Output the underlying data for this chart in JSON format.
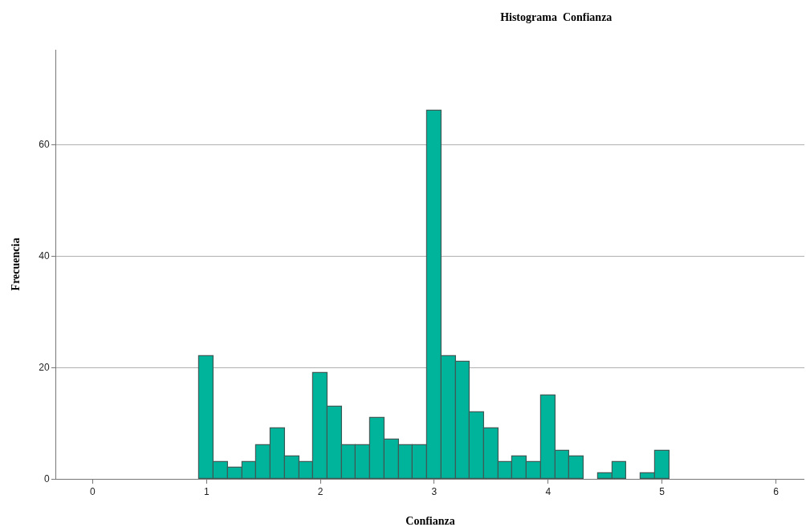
{
  "chart_data": {
    "type": "histogram",
    "title": "Histograma  Confianza",
    "xlabel": "Confianza",
    "ylabel": "Frecuencia",
    "bins": [
      0.9375,
      1.0625,
      1.1875,
      1.3125,
      1.4375,
      1.5625,
      1.6875,
      1.8125,
      1.9375,
      2.0625,
      2.1875,
      2.3125,
      2.4375,
      2.5625,
      2.6875,
      2.8125,
      2.9375,
      3.0625,
      3.1875,
      3.3125,
      3.4375,
      3.5625,
      3.6875,
      3.8125,
      3.9375,
      4.0625,
      4.1875,
      4.3125,
      4.4375,
      4.5625,
      4.6875,
      4.8125,
      4.9375,
      5.0625
    ],
    "values": [
      22,
      3,
      2,
      3,
      6,
      9,
      4,
      3,
      19,
      13,
      6,
      6,
      11,
      7,
      6,
      6,
      66,
      22,
      21,
      12,
      9,
      3,
      4,
      3,
      15,
      5,
      4,
      0,
      1,
      3,
      0,
      1,
      5
    ],
    "color": "#00b49c",
    "xlim": [
      -0.32,
      6.25
    ],
    "ylim": [
      0,
      77
    ],
    "xticks": [
      0,
      1,
      2,
      3,
      4,
      5,
      6
    ],
    "yticks": [
      0,
      20,
      40,
      60
    ],
    "grid": "y"
  }
}
